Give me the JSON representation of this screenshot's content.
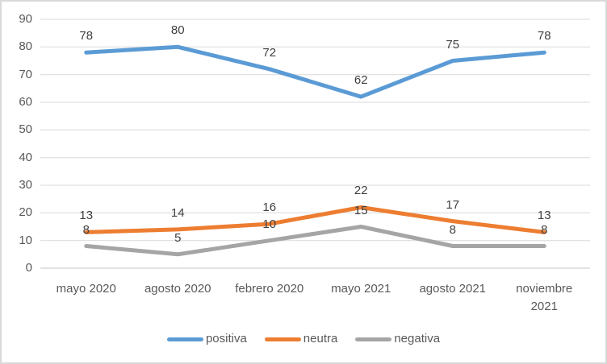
{
  "chart_data": {
    "type": "line",
    "categories": [
      "mayo 2020",
      "agosto 2020",
      "febrero 2020",
      "mayo 2021",
      "agosto 2021",
      "noviembre 2021"
    ],
    "series": [
      {
        "name": "positiva",
        "color": "#5B9BD5",
        "values": [
          78,
          80,
          72,
          62,
          75,
          78
        ]
      },
      {
        "name": "neutra",
        "color": "#ED7D31",
        "values": [
          13,
          14,
          16,
          22,
          17,
          13
        ]
      },
      {
        "name": "negativa",
        "color": "#A5A5A5",
        "values": [
          8,
          5,
          10,
          15,
          8,
          8
        ]
      }
    ],
    "title": "",
    "xlabel": "",
    "ylabel": "",
    "ylim": [
      0,
      90
    ],
    "y_ticks": [
      0,
      10,
      20,
      30,
      40,
      50,
      60,
      70,
      80,
      90
    ],
    "grid": true,
    "data_labels": true,
    "legend_position": "bottom",
    "legend_labels": [
      "positiva",
      "neutra",
      "negativa"
    ]
  },
  "colors": {
    "gridline": "#D9D9D9",
    "axis_line": "#C6C6C6",
    "axis_text": "#595959",
    "data_label_text": "#404040",
    "frame_border": "#D9D9D9",
    "background": "#FFFFFF"
  }
}
